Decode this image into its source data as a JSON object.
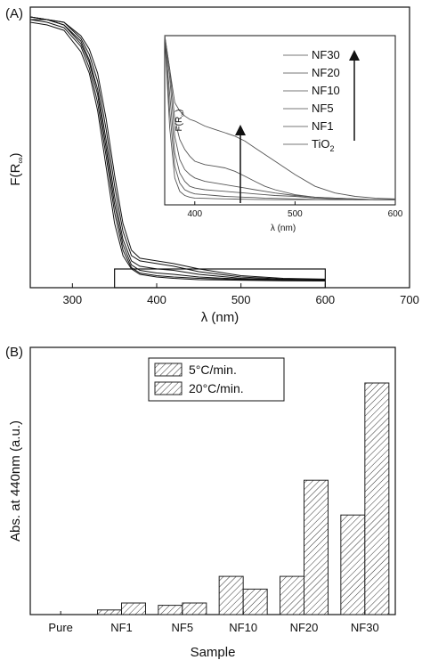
{
  "panels": {
    "a_label": "(A)",
    "b_label": "(B)"
  },
  "chart_data": [
    {
      "type": "line",
      "panel": "A",
      "xlabel": "λ (nm)",
      "ylabel": "F(R",
      "ylabel_sub": "∞",
      "ylabel_close": ")",
      "xlim": [
        250,
        700
      ],
      "x_ticks": [
        "300",
        "400",
        "500",
        "600",
        "700"
      ],
      "y_ticks_shown": false,
      "highlight_box_x": [
        350,
        600
      ],
      "series": [
        {
          "x": [
            250,
            270,
            290,
            310,
            320,
            330,
            340,
            350,
            360,
            370,
            380,
            390,
            400,
            420,
            450,
            500,
            550,
            600
          ],
          "values": [
            0.97,
            0.96,
            0.94,
            0.86,
            0.78,
            0.64,
            0.43,
            0.22,
            0.1,
            0.05,
            0.03,
            0.025,
            0.02,
            0.015,
            0.01,
            0.008,
            0.006,
            0.005
          ]
        },
        {
          "x": [
            250,
            270,
            290,
            310,
            320,
            330,
            340,
            350,
            360,
            370,
            380,
            390,
            400,
            420,
            450,
            500,
            550,
            600
          ],
          "values": [
            0.98,
            0.97,
            0.95,
            0.88,
            0.8,
            0.67,
            0.47,
            0.26,
            0.12,
            0.055,
            0.035,
            0.03,
            0.025,
            0.02,
            0.015,
            0.01,
            0.008,
            0.006
          ]
        },
        {
          "x": [
            250,
            270,
            290,
            310,
            320,
            330,
            340,
            350,
            360,
            370,
            380,
            390,
            400,
            420,
            450,
            500,
            550,
            600
          ],
          "values": [
            0.99,
            0.98,
            0.96,
            0.89,
            0.82,
            0.7,
            0.5,
            0.29,
            0.14,
            0.065,
            0.045,
            0.04,
            0.035,
            0.03,
            0.02,
            0.012,
            0.009,
            0.007
          ]
        },
        {
          "x": [
            250,
            270,
            290,
            310,
            320,
            330,
            340,
            350,
            360,
            370,
            380,
            390,
            400,
            420,
            450,
            500,
            550,
            600
          ],
          "values": [
            0.99,
            0.98,
            0.96,
            0.9,
            0.83,
            0.72,
            0.53,
            0.32,
            0.16,
            0.08,
            0.06,
            0.055,
            0.05,
            0.045,
            0.03,
            0.015,
            0.01,
            0.008
          ]
        },
        {
          "x": [
            250,
            270,
            290,
            310,
            320,
            330,
            340,
            350,
            360,
            370,
            380,
            390,
            400,
            420,
            450,
            500,
            550,
            600
          ],
          "values": [
            0.99,
            0.98,
            0.97,
            0.91,
            0.85,
            0.75,
            0.57,
            0.36,
            0.19,
            0.1,
            0.08,
            0.075,
            0.07,
            0.06,
            0.04,
            0.02,
            0.012,
            0.01
          ]
        },
        {
          "x": [
            250,
            270,
            290,
            310,
            320,
            330,
            340,
            350,
            360,
            370,
            380,
            390,
            400,
            420,
            450,
            500,
            550,
            600
          ],
          "values": [
            0.98,
            0.98,
            0.97,
            0.92,
            0.87,
            0.78,
            0.61,
            0.4,
            0.22,
            0.12,
            0.09,
            0.085,
            0.08,
            0.07,
            0.05,
            0.025,
            0.015,
            0.012
          ]
        }
      ],
      "inset": {
        "type": "line",
        "xlabel": "λ (nm)",
        "ylabel": "F(R",
        "ylabel_sub": "∞",
        "ylabel_close": ")",
        "xlim": [
          370,
          600
        ],
        "x_ticks": [
          "400",
          "500",
          "600"
        ],
        "legend": [
          "NF30",
          "NF20",
          "NF10",
          "NF5",
          "NF1",
          "TiO"
        ],
        "legend_last_sub": "2",
        "arrow_at_x": 430,
        "series": [
          {
            "x": [
              370,
              375,
              380,
              385,
              390,
              395,
              400,
              410,
              420,
              430,
              440,
              450,
              460,
              470,
              480,
              500,
              520,
              540,
              560,
              580,
              600
            ],
            "values": [
              1.0,
              0.8,
              0.6,
              0.55,
              0.52,
              0.5,
              0.49,
              0.46,
              0.44,
              0.42,
              0.4,
              0.37,
              0.33,
              0.29,
              0.25,
              0.17,
              0.1,
              0.06,
              0.04,
              0.03,
              0.025
            ]
          },
          {
            "x": [
              370,
              375,
              380,
              385,
              390,
              395,
              400,
              410,
              420,
              430,
              440,
              450,
              460,
              470,
              480,
              500,
              520,
              540,
              560,
              580,
              600
            ],
            "values": [
              1.0,
              0.8,
              0.5,
              0.38,
              0.32,
              0.28,
              0.25,
              0.23,
              0.22,
              0.21,
              0.19,
              0.16,
              0.13,
              0.1,
              0.08,
              0.05,
              0.035,
              0.03,
              0.025,
              0.02,
              0.02
            ]
          },
          {
            "x": [
              370,
              375,
              380,
              385,
              390,
              395,
              400,
              410,
              420,
              430,
              440,
              450,
              460,
              470,
              480,
              500,
              520,
              540,
              560,
              580,
              600
            ],
            "values": [
              1.0,
              0.75,
              0.4,
              0.26,
              0.2,
              0.17,
              0.15,
              0.13,
              0.12,
              0.11,
              0.1,
              0.09,
              0.08,
              0.07,
              0.06,
              0.045,
              0.035,
              0.03,
              0.025,
              0.02,
              0.02
            ]
          },
          {
            "x": [
              370,
              375,
              380,
              385,
              390,
              395,
              400,
              410,
              420,
              430,
              440,
              450,
              460,
              470,
              480,
              500,
              520,
              540,
              560,
              580,
              600
            ],
            "values": [
              1.0,
              0.65,
              0.3,
              0.18,
              0.13,
              0.1,
              0.09,
              0.08,
              0.075,
              0.07,
              0.065,
              0.06,
              0.055,
              0.05,
              0.045,
              0.04,
              0.03,
              0.025,
              0.02,
              0.02,
              0.02
            ]
          },
          {
            "x": [
              370,
              375,
              380,
              385,
              390,
              395,
              400,
              410,
              420,
              430,
              440,
              450,
              460,
              470,
              480,
              500,
              520,
              540,
              560,
              580,
              600
            ],
            "values": [
              1.0,
              0.55,
              0.22,
              0.12,
              0.08,
              0.065,
              0.055,
              0.05,
              0.045,
              0.04,
              0.038,
              0.035,
              0.033,
              0.03,
              0.028,
              0.025,
              0.022,
              0.02,
              0.02,
              0.02,
              0.02
            ]
          },
          {
            "x": [
              370,
              375,
              380,
              385,
              390,
              395,
              400,
              410,
              420,
              430,
              440,
              450,
              460,
              470,
              480,
              500,
              520,
              540,
              560,
              580,
              600
            ],
            "values": [
              1.0,
              0.45,
              0.15,
              0.07,
              0.045,
              0.035,
              0.03,
              0.028,
              0.026,
              0.025,
              0.024,
              0.023,
              0.022,
              0.021,
              0.02,
              0.02,
              0.02,
              0.02,
              0.02,
              0.02,
              0.02
            ]
          }
        ]
      }
    },
    {
      "type": "bar",
      "panel": "B",
      "xlabel": "Sample",
      "ylabel": "Abs. at 440nm (a.u.)",
      "categories": [
        "Pure",
        "NF1",
        "NF5",
        "NF10",
        "NF20",
        "NF30"
      ],
      "ylim": [
        0,
        1.0
      ],
      "y_ticks_shown": false,
      "legend_position": "top-center",
      "series": [
        {
          "name": "5°C/min.",
          "values": [
            0.0,
            0.02,
            0.04,
            0.165,
            0.165,
            0.43
          ]
        },
        {
          "name": "20°C/min.",
          "values": [
            0.0,
            0.05,
            0.05,
            0.11,
            0.58,
            1.0
          ]
        }
      ]
    }
  ]
}
